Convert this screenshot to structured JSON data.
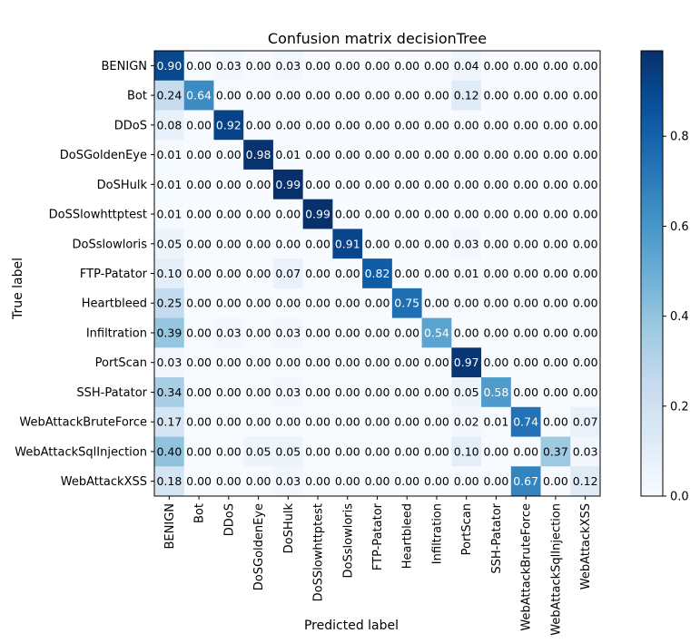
{
  "chart_data": {
    "type": "heatmap",
    "title": "Confusion matrix decisionTree",
    "xlabel": "Predicted label",
    "ylabel": "True label",
    "x_categories": [
      "BENIGN",
      "Bot",
      "DDoS",
      "DoSGoldenEye",
      "DoSHulk",
      "DoSSlowhttptest",
      "DoSslowloris",
      "FTP-Patator",
      "Heartbleed",
      "Infiltration",
      "PortScan",
      "SSH-Patator",
      "WebAttackBruteForce",
      "WebAttackSqlInjection",
      "WebAttackXSS"
    ],
    "y_categories": [
      "BENIGN",
      "Bot",
      "DDoS",
      "DoSGoldenEye",
      "DoSHulk",
      "DoSSlowhttptest",
      "DoSslowloris",
      "FTP-Patator",
      "Heartbleed",
      "Infiltration",
      "PortScan",
      "SSH-Patator",
      "WebAttackBruteForce",
      "WebAttackSqlInjection",
      "WebAttackXSS"
    ],
    "values": [
      [
        0.9,
        0.0,
        0.03,
        0.0,
        0.03,
        0.0,
        0.0,
        0.0,
        0.0,
        0.0,
        0.04,
        0.0,
        0.0,
        0.0,
        0.0
      ],
      [
        0.24,
        0.64,
        0.0,
        0.0,
        0.0,
        0.0,
        0.0,
        0.0,
        0.0,
        0.0,
        0.12,
        0.0,
        0.0,
        0.0,
        0.0
      ],
      [
        0.08,
        0.0,
        0.92,
        0.0,
        0.0,
        0.0,
        0.0,
        0.0,
        0.0,
        0.0,
        0.0,
        0.0,
        0.0,
        0.0,
        0.0
      ],
      [
        0.01,
        0.0,
        0.0,
        0.98,
        0.01,
        0.0,
        0.0,
        0.0,
        0.0,
        0.0,
        0.0,
        0.0,
        0.0,
        0.0,
        0.0
      ],
      [
        0.01,
        0.0,
        0.0,
        0.0,
        0.99,
        0.0,
        0.0,
        0.0,
        0.0,
        0.0,
        0.0,
        0.0,
        0.0,
        0.0,
        0.0
      ],
      [
        0.01,
        0.0,
        0.0,
        0.0,
        0.0,
        0.99,
        0.0,
        0.0,
        0.0,
        0.0,
        0.0,
        0.0,
        0.0,
        0.0,
        0.0
      ],
      [
        0.05,
        0.0,
        0.0,
        0.0,
        0.0,
        0.0,
        0.91,
        0.0,
        0.0,
        0.0,
        0.03,
        0.0,
        0.0,
        0.0,
        0.0
      ],
      [
        0.1,
        0.0,
        0.0,
        0.0,
        0.07,
        0.0,
        0.0,
        0.82,
        0.0,
        0.0,
        0.01,
        0.0,
        0.0,
        0.0,
        0.0
      ],
      [
        0.25,
        0.0,
        0.0,
        0.0,
        0.0,
        0.0,
        0.0,
        0.0,
        0.75,
        0.0,
        0.0,
        0.0,
        0.0,
        0.0,
        0.0
      ],
      [
        0.39,
        0.0,
        0.03,
        0.0,
        0.03,
        0.0,
        0.0,
        0.0,
        0.0,
        0.54,
        0.0,
        0.0,
        0.0,
        0.0,
        0.0
      ],
      [
        0.03,
        0.0,
        0.0,
        0.0,
        0.0,
        0.0,
        0.0,
        0.0,
        0.0,
        0.0,
        0.97,
        0.0,
        0.0,
        0.0,
        0.0
      ],
      [
        0.34,
        0.0,
        0.0,
        0.0,
        0.03,
        0.0,
        0.0,
        0.0,
        0.0,
        0.0,
        0.05,
        0.58,
        0.0,
        0.0,
        0.0
      ],
      [
        0.17,
        0.0,
        0.0,
        0.0,
        0.0,
        0.0,
        0.0,
        0.0,
        0.0,
        0.0,
        0.02,
        0.01,
        0.74,
        0.0,
        0.07
      ],
      [
        0.4,
        0.0,
        0.0,
        0.05,
        0.05,
        0.0,
        0.0,
        0.0,
        0.0,
        0.0,
        0.1,
        0.0,
        0.0,
        0.37,
        0.03
      ],
      [
        0.18,
        0.0,
        0.0,
        0.0,
        0.03,
        0.0,
        0.0,
        0.0,
        0.0,
        0.0,
        0.0,
        0.0,
        0.67,
        0.0,
        0.12
      ]
    ],
    "colorscale": "Blues",
    "value_range": [
      0,
      0.99
    ],
    "colorbar_ticks": [
      0.0,
      0.2,
      0.4,
      0.6,
      0.8
    ],
    "colorbar_tick_labels": [
      "0.0",
      "0.2",
      "0.4",
      "0.6",
      "0.8"
    ],
    "cell_label_light_color": "#ffffff",
    "cell_label_dark_color": "#000000",
    "grid": false
  }
}
